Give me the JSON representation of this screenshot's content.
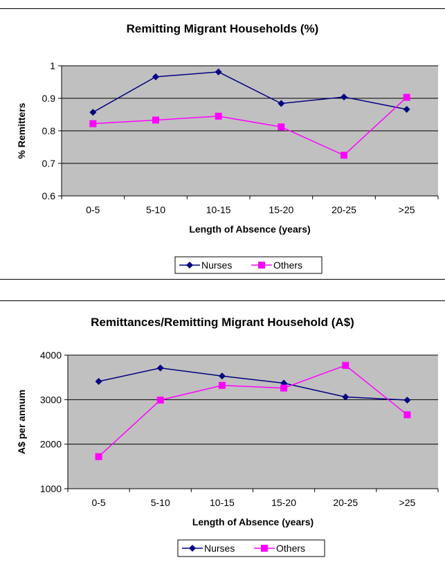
{
  "chart_data": [
    {
      "type": "line",
      "title": "Remitting Migrant Households (%)",
      "xlabel": "Length of Absence (years)",
      "ylabel": "% Remitters",
      "categories": [
        "0-5",
        "5-10",
        "10-15",
        "15-20",
        "20-25",
        ">25"
      ],
      "ylim": [
        0.6,
        1.0
      ],
      "yticks": [
        0.6,
        0.7,
        0.8,
        0.9,
        1
      ],
      "grid": true,
      "legend": "bottom",
      "series": [
        {
          "name": "Nurses",
          "color": "#000080",
          "marker": "diamond",
          "values": [
            0.857,
            0.966,
            0.981,
            0.884,
            0.904,
            0.866
          ]
        },
        {
          "name": "Others",
          "color": "#FF00FF",
          "marker": "square",
          "values": [
            0.822,
            0.833,
            0.845,
            0.812,
            0.725,
            0.903
          ]
        }
      ]
    },
    {
      "type": "line",
      "title": "Remittances/Remitting Migrant Household (A$)",
      "xlabel": "Length of Absence (years)",
      "ylabel": "A$ per annum",
      "categories": [
        "0-5",
        "5-10",
        "10-15",
        "15-20",
        "20-25",
        ">25"
      ],
      "ylim": [
        1000,
        4000
      ],
      "yticks": [
        1000,
        2000,
        3000,
        4000
      ],
      "grid": true,
      "legend": "bottom",
      "series": [
        {
          "name": "Nurses",
          "color": "#000080",
          "marker": "diamond",
          "values": [
            3410,
            3710,
            3530,
            3370,
            3060,
            2990
          ]
        },
        {
          "name": "Others",
          "color": "#FF00FF",
          "marker": "square",
          "values": [
            1720,
            2990,
            3320,
            3260,
            3770,
            2660
          ]
        }
      ]
    }
  ],
  "colors": {
    "plot_background": "#C0C0C0"
  }
}
